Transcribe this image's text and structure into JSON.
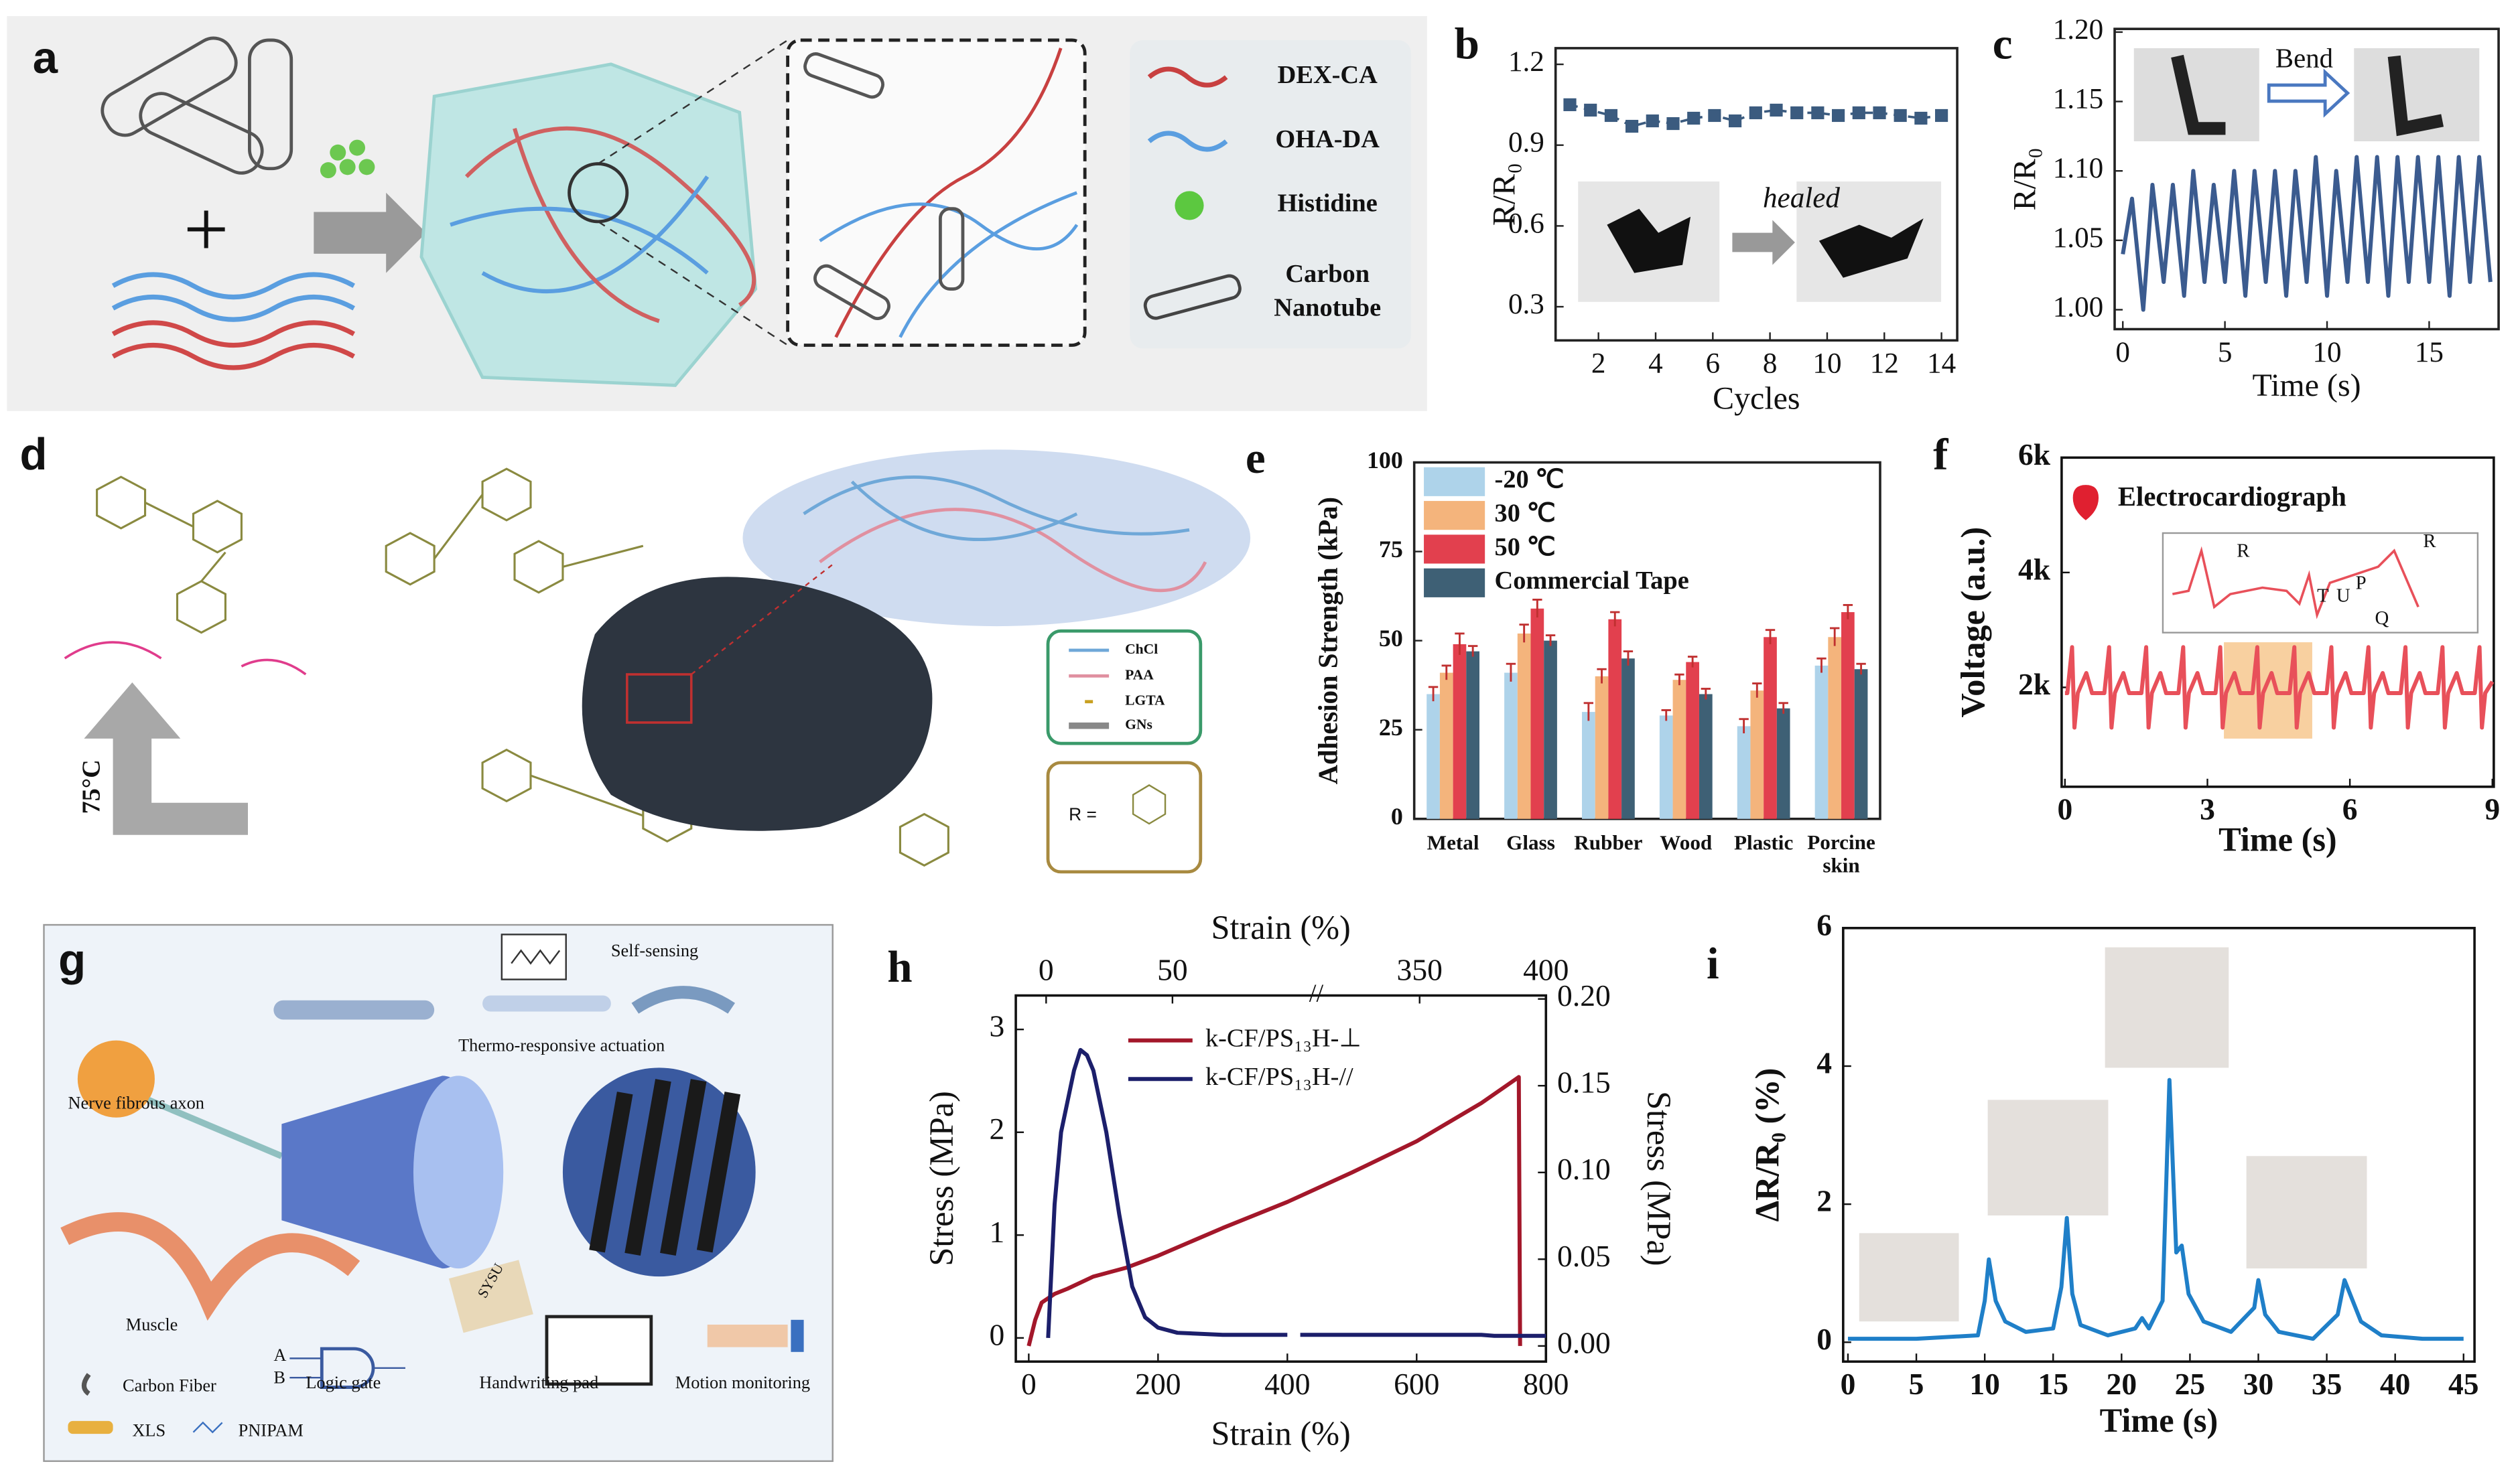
{
  "diagrams": {
    "a": {
      "label": "a",
      "legend": [
        "DEX-CA",
        "OHA-DA",
        "Histidine",
        "Carbon",
        "Nanotube"
      ]
    },
    "d": {
      "label": "d",
      "temperature": "75°C",
      "legend": [
        "ChCl",
        "PAA",
        "LGTA",
        "GNs"
      ],
      "r_group": "R ="
    },
    "g": {
      "label": "g",
      "texts": [
        "Self-sensing",
        "Thermo-responsive actuation",
        "Nerve fibrous axon",
        "Muscle",
        "Logic gate",
        "Handwriting pad",
        "Motion monitoring",
        "Carbon Fiber",
        "XLS",
        "PNIPAM",
        "A",
        "B",
        "SYSU"
      ]
    }
  },
  "chart_data": [
    {
      "type": "line",
      "panel": "b",
      "xlabel": "Cycles",
      "ylabel": "R/R₀",
      "annotations": [
        "healed"
      ],
      "markers": true,
      "dashed": true,
      "color": "#3b5b7f",
      "x": [
        1,
        1.72,
        2.44,
        3.17,
        3.89,
        4.61,
        5.33,
        6.06,
        6.78,
        7.5,
        8.22,
        8.94,
        9.67,
        10.39,
        11.11,
        11.83,
        12.56,
        13.28,
        14
      ],
      "values": [
        1.05,
        1.03,
        1.01,
        0.97,
        0.99,
        0.98,
        1.0,
        1.01,
        0.99,
        1.02,
        1.03,
        1.02,
        1.02,
        1.01,
        1.02,
        1.02,
        1.01,
        1.0,
        1.01
      ],
      "xlim": [
        0.5,
        14.55
      ],
      "xticks": [
        2,
        4,
        6,
        8,
        10,
        12,
        14
      ],
      "ylim": [
        0.175,
        1.26
      ],
      "yticks": [
        0.3,
        0.6,
        0.9,
        1.2
      ]
    },
    {
      "type": "line",
      "panel": "c",
      "xlabel": "Time (s)",
      "ylabel": "R/R₀",
      "annotations": [
        "Bend"
      ],
      "color": "#3b5b8f",
      "x": [
        0,
        0.45,
        1,
        1.45,
        2,
        2.45,
        3,
        3.45,
        4,
        4.45,
        5,
        5.45,
        6,
        6.45,
        7,
        7.45,
        8,
        8.45,
        9,
        9.45,
        10,
        10.45,
        11,
        11.45,
        12,
        12.45,
        13,
        13.45,
        14,
        14.45,
        15,
        15.45,
        16,
        16.45,
        17,
        17.45,
        18
      ],
      "values": [
        1.04,
        1.08,
        1.0,
        1.09,
        1.02,
        1.09,
        1.01,
        1.1,
        1.02,
        1.09,
        1.02,
        1.1,
        1.01,
        1.1,
        1.02,
        1.1,
        1.01,
        1.1,
        1.02,
        1.11,
        1.01,
        1.1,
        1.02,
        1.11,
        1.02,
        1.11,
        1.01,
        1.11,
        1.02,
        1.11,
        1.02,
        1.11,
        1.01,
        1.11,
        1.02,
        1.11,
        1.02
      ],
      "xlim": [
        -0.4,
        18.4
      ],
      "xticks": [
        0,
        5,
        10,
        15
      ],
      "ylim": [
        0.986,
        1.2023
      ],
      "yticks": [
        {
          "value": 1.0,
          "label": "1.00"
        },
        1.05,
        {
          "value": 1.1,
          "label": "1.10"
        },
        1.15,
        {
          "value": 1.2,
          "label": "1.20"
        }
      ]
    },
    {
      "type": "bar",
      "panel": "e",
      "ylabel": "Adhesion Strength (kPa)",
      "legend": "upper left",
      "categories": [
        "Metal",
        "Glass",
        "Rubber",
        "Wood",
        "Plastic",
        "Porcine skin"
      ],
      "series": [
        {
          "name": "-20 ℃",
          "color": "#aed3ea",
          "label_color": "#3f8fcc",
          "values": [
            35,
            41,
            30,
            29,
            26,
            43
          ],
          "errors": [
            2,
            2.5,
            2.5,
            1.5,
            2,
            2
          ]
        },
        {
          "name": "30 ℃",
          "color": "#f4b47c",
          "label_color": "#e0822e",
          "values": [
            41,
            52,
            40,
            39,
            36,
            51
          ],
          "errors": [
            2,
            2.5,
            2,
            1.5,
            2,
            2.5
          ]
        },
        {
          "name": "50 ℃",
          "color": "#e2404e",
          "label_color": "#d42030",
          "values": [
            49,
            59,
            56,
            44,
            51,
            58
          ],
          "errors": [
            3,
            2.5,
            2,
            1.5,
            2,
            2
          ]
        },
        {
          "name": "Commercial Tape",
          "color": "#3e6075",
          "label_color": "#4f86a6",
          "values": [
            47,
            50,
            45,
            35,
            31,
            42
          ],
          "errors": [
            1.5,
            1.5,
            2,
            1.5,
            1.5,
            1.5
          ]
        }
      ],
      "ylim": [
        0,
        100
      ],
      "yticks": [
        0,
        25,
        50,
        75,
        100
      ]
    },
    {
      "type": "line",
      "panel": "f",
      "xlabel": "Time (s)",
      "ylabel": "Voltage (a.u.)",
      "title": "Electrocardiograph",
      "annotations": [
        "R",
        "T",
        "U",
        "P",
        "Q",
        "R"
      ],
      "color": "#e8505a",
      "x": [
        0,
        0.05,
        0.15,
        0.2,
        0.27,
        0.45,
        0.57,
        0.83,
        0.93,
        0.98,
        1.05,
        1.23,
        1.35,
        1.61,
        1.71,
        1.76,
        1.83,
        2.01,
        2.13,
        2.39,
        2.49,
        2.54,
        2.61,
        2.79,
        2.91,
        3.17,
        3.27,
        3.32,
        3.39,
        3.57,
        3.69,
        3.95,
        4.05,
        4.1,
        4.17,
        4.35,
        4.47,
        4.73,
        4.83,
        4.88,
        4.95,
        5.13,
        5.25,
        5.51,
        5.61,
        5.66,
        5.73,
        5.91,
        6.03,
        6.29,
        6.39,
        6.44,
        6.51,
        6.69,
        6.81,
        7.07,
        7.17,
        7.22,
        7.29,
        7.47,
        7.59,
        7.85,
        7.95,
        8.0,
        8.07,
        8.25,
        8.37,
        8.63,
        8.73,
        8.78,
        8.85,
        9.0
      ],
      "values": [
        1900,
        1900,
        2700,
        1300,
        1900,
        2250,
        1900,
        1900,
        2700,
        1300,
        1900,
        2250,
        1900,
        1900,
        2700,
        1300,
        1900,
        2250,
        1900,
        1900,
        2700,
        1300,
        1900,
        2250,
        1900,
        1900,
        2700,
        1300,
        1900,
        2250,
        1900,
        1900,
        2700,
        1300,
        1900,
        2250,
        1900,
        1900,
        2700,
        1300,
        1900,
        2250,
        1900,
        1900,
        2700,
        1300,
        1900,
        2250,
        1900,
        1900,
        2700,
        1300,
        1900,
        2250,
        1900,
        1900,
        2700,
        1300,
        1900,
        2250,
        1900,
        1900,
        2700,
        1300,
        1900,
        2250,
        1900,
        1900,
        2700,
        1300,
        1900,
        2100
      ],
      "xlim": [
        -0.07,
        9.03
      ],
      "xticks": [
        0,
        3,
        6,
        9
      ],
      "ylim": [
        270,
        6000
      ],
      "yticks": [
        {
          "value": 2000,
          "label": "2k"
        },
        {
          "value": 4000,
          "label": "4k"
        },
        {
          "value": 6000,
          "label": "6k"
        }
      ]
    },
    {
      "type": "line",
      "panel": "h",
      "xlabel": "Strain (%)",
      "x2label": "Strain (%)",
      "ylabel": "Stress (MPa)",
      "y2label": "Stress (MPa)",
      "series": [
        {
          "name": "k-CF/PS₁₃H-⊥",
          "color": "#a3172a",
          "axis": "y2",
          "x": [
            0,
            10,
            20,
            40,
            60,
            100,
            150,
            200,
            300,
            400,
            500,
            600,
            700,
            758,
            760
          ],
          "values": [
            0,
            0.015,
            0.025,
            0.03,
            0.033,
            0.04,
            0.045,
            0.052,
            0.068,
            0.083,
            0.1,
            0.118,
            0.14,
            0.155,
            0
          ]
        },
        {
          "name": "k-CF/PS₁₃H-//",
          "color": "#1c1f6b",
          "x": [
            30,
            40,
            50,
            60,
            70,
            80,
            90,
            100,
            120,
            140,
            160,
            180,
            200,
            230,
            300,
            400,
            410,
            420,
            500,
            600,
            700,
            720,
            800
          ],
          "values": [
            0,
            1.3,
            2.0,
            2.3,
            2.6,
            2.8,
            2.75,
            2.6,
            2.0,
            1.2,
            0.5,
            0.2,
            0.1,
            0.05,
            0.03,
            0.03,
            null,
            0.03,
            0.03,
            0.03,
            0.03,
            0.02,
            0.02
          ]
        }
      ],
      "xlim": [
        -20,
        800
      ],
      "xticks": [
        0,
        200,
        400,
        600,
        800
      ],
      "x2_segments": [
        [
          -12,
          105
        ],
        [
          311,
          400
        ]
      ],
      "x2ticks": [
        0,
        50,
        350,
        400
      ],
      "ylim": [
        -0.23,
        3.33
      ],
      "yticks": [
        0,
        1,
        2,
        3
      ],
      "y2lim": [
        -0.009,
        0.202
      ],
      "y2ticks": [
        {
          "value": 0,
          "label": "0.00"
        },
        0.05,
        {
          "value": 0.1,
          "label": "0.10"
        },
        0.15,
        {
          "value": 0.2,
          "label": "0.20"
        }
      ]
    },
    {
      "type": "line",
      "panel": "i",
      "xlabel": "Time (s)",
      "ylabel": "ΔR/R₀ (%)",
      "color": "#1f7fc8",
      "x": [
        0,
        5,
        9.5,
        10,
        10.3,
        10.8,
        11.5,
        13,
        15,
        15.6,
        16,
        16.4,
        17,
        19,
        21,
        21.5,
        22,
        23,
        23.5,
        24,
        24.4,
        24.9,
        26,
        28,
        29.7,
        30,
        30.5,
        31.5,
        34,
        35.8,
        36.3,
        36.9,
        37.5,
        39,
        42,
        45
      ],
      "values": [
        0.05,
        0.05,
        0.1,
        0.6,
        1.2,
        0.6,
        0.3,
        0.15,
        0.2,
        0.8,
        1.8,
        0.7,
        0.25,
        0.1,
        0.2,
        0.35,
        0.2,
        0.6,
        3.8,
        1.3,
        1.4,
        0.7,
        0.3,
        0.15,
        0.5,
        0.9,
        0.4,
        0.15,
        0.05,
        0.4,
        0.9,
        0.6,
        0.3,
        0.1,
        0.05,
        0.05
      ],
      "xlim": [
        -0.35,
        45.8
      ],
      "xticks": [
        0,
        5,
        10,
        15,
        20,
        25,
        30,
        35,
        40,
        45
      ],
      "ylim": [
        -0.28,
        6
      ],
      "yticks": [
        0,
        2,
        4,
        6
      ]
    }
  ]
}
